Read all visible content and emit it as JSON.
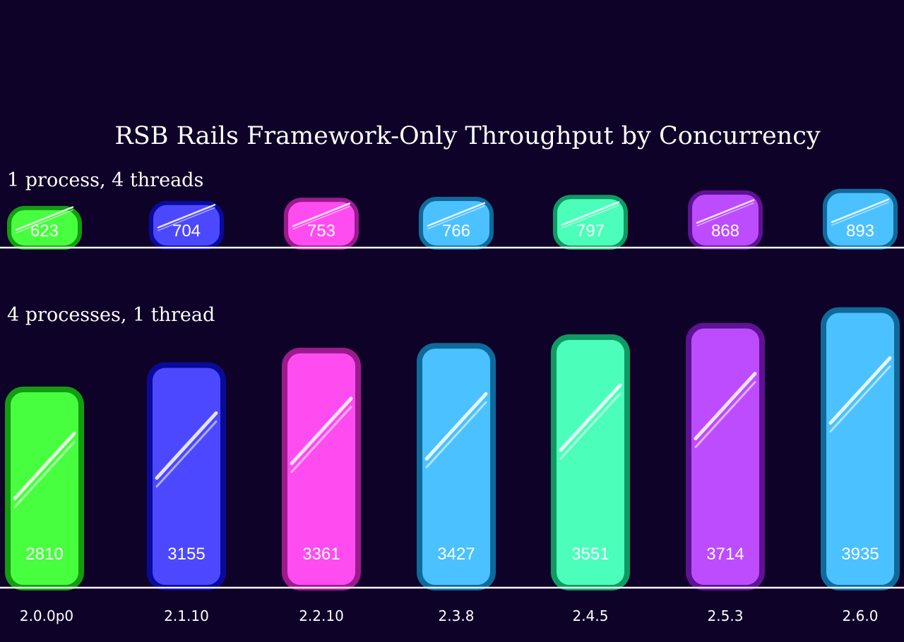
{
  "chart_data": {
    "type": "bar",
    "title": "RSB Rails Framework-Only Throughput by Concurrency",
    "categories": [
      "2.0.0p0",
      "2.1.10",
      "2.2.10",
      "2.3.8",
      "2.4.5",
      "2.5.3",
      "2.6.0"
    ],
    "series": [
      {
        "name": "1 process, 4 threads",
        "values": [
          623,
          704,
          753,
          766,
          797,
          868,
          893
        ]
      },
      {
        "name": "4 processes, 1 thread",
        "values": [
          2810,
          3155,
          3361,
          3427,
          3551,
          3714,
          3935
        ]
      }
    ],
    "bar_colors": [
      {
        "fill": "#47ff3f",
        "stroke": "#139c12"
      },
      {
        "fill": "#4c48ff",
        "stroke": "#0a0a9a"
      },
      {
        "fill": "#ff4cf0",
        "stroke": "#9c1a8e"
      },
      {
        "fill": "#4cc1ff",
        "stroke": "#0f6a9c"
      },
      {
        "fill": "#4bffbb",
        "stroke": "#0f9a63"
      },
      {
        "fill": "#bd4cff",
        "stroke": "#5e1294"
      },
      {
        "fill": "#4cc1ff",
        "stroke": "#0f6a9c"
      }
    ],
    "background": "#0f0228",
    "grid": false,
    "legend": "none"
  }
}
